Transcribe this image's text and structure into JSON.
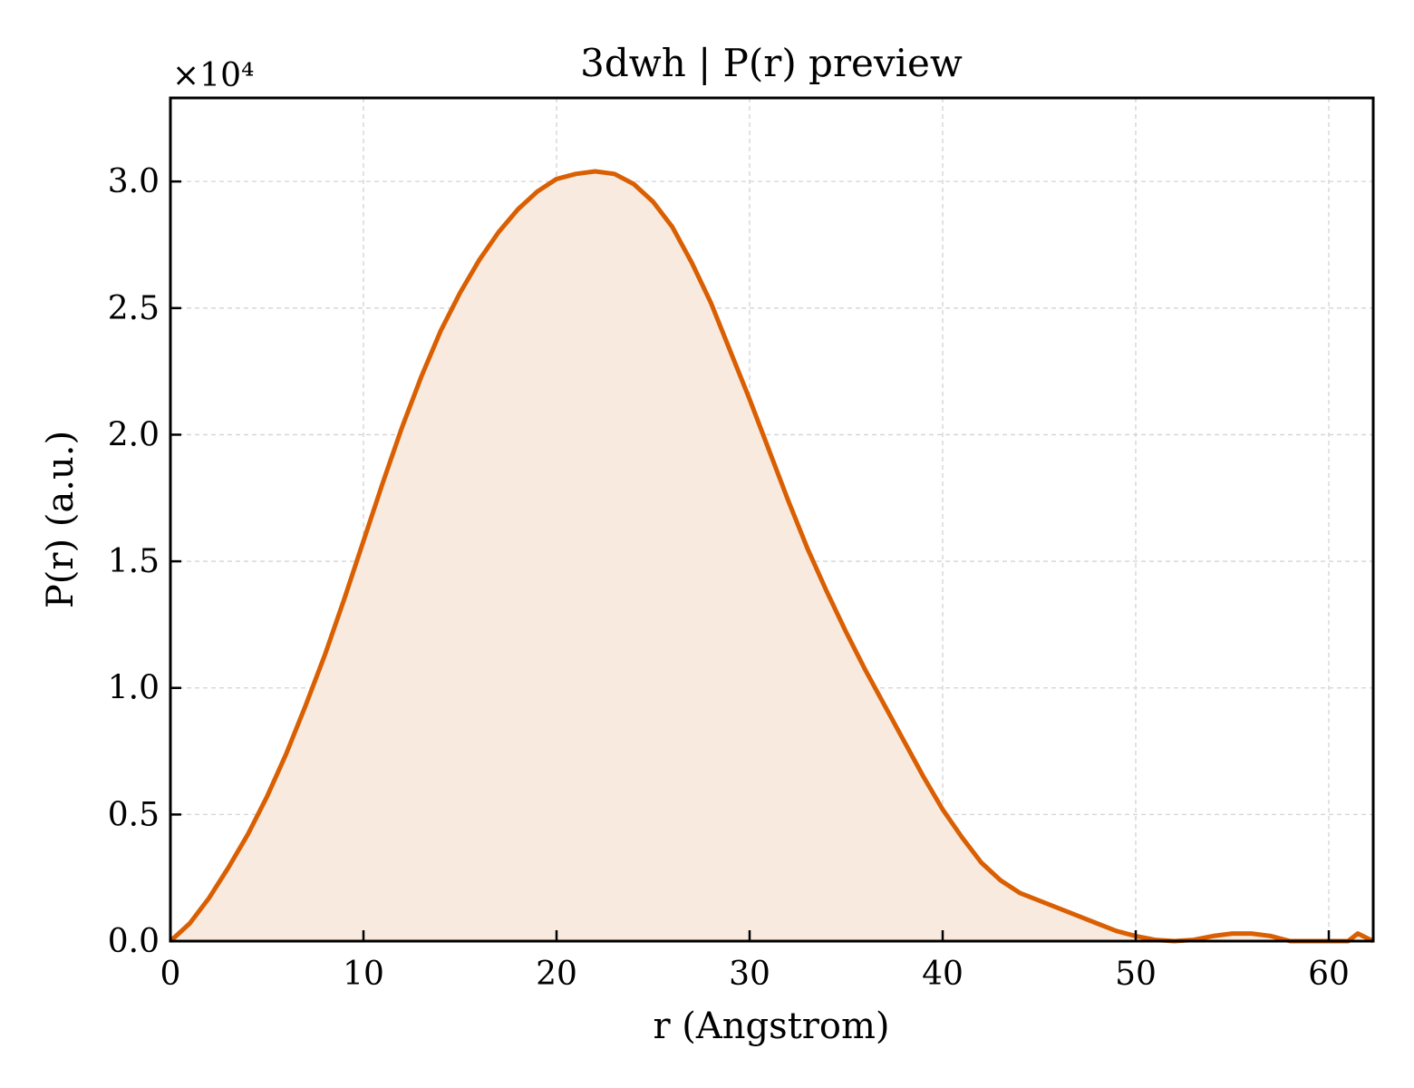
{
  "chart_data": {
    "type": "area",
    "title": "3dwh | P(r) preview",
    "xlabel": "r (Angstrom)",
    "ylabel": "P(r) (a.u.)",
    "y_multiplier_label": "×10⁴",
    "xlim": [
      0,
      62.3
    ],
    "ylim": [
      0,
      3.33
    ],
    "xticks": [
      0,
      10,
      20,
      30,
      40,
      50,
      60
    ],
    "xtick_labels": [
      "0",
      "10",
      "20",
      "30",
      "40",
      "50",
      "60"
    ],
    "yticks": [
      0,
      0.5,
      1.0,
      1.5,
      2.0,
      2.5,
      3.0
    ],
    "ytick_labels": [
      "0.0",
      "0.5",
      "1.0",
      "1.5",
      "2.0",
      "2.5",
      "3.0"
    ],
    "grid": true,
    "line_color": "#d95f02",
    "fill_color": "#f9eadf",
    "series": [
      {
        "x": [
          0,
          1,
          2,
          3,
          4,
          5,
          6,
          7,
          8,
          9,
          10,
          11,
          12,
          13,
          14,
          15,
          16,
          17,
          18,
          19,
          20,
          21,
          22,
          23,
          24,
          25,
          26,
          27,
          28,
          29,
          30,
          31,
          32,
          33,
          34,
          35,
          36,
          37,
          38,
          39,
          40,
          41,
          42,
          43,
          44,
          45,
          46,
          47,
          48,
          49,
          50,
          51,
          52,
          53,
          54,
          55,
          56,
          57,
          58,
          59,
          60,
          61,
          61.5,
          62.3
        ],
        "y": [
          0,
          0.07,
          0.17,
          0.29,
          0.42,
          0.57,
          0.74,
          0.93,
          1.13,
          1.35,
          1.58,
          1.81,
          2.03,
          2.23,
          2.41,
          2.56,
          2.69,
          2.8,
          2.89,
          2.96,
          3.01,
          3.03,
          3.04,
          3.03,
          2.99,
          2.92,
          2.82,
          2.68,
          2.52,
          2.33,
          2.14,
          1.94,
          1.74,
          1.55,
          1.38,
          1.22,
          1.07,
          0.93,
          0.79,
          0.65,
          0.52,
          0.41,
          0.31,
          0.24,
          0.19,
          0.16,
          0.13,
          0.1,
          0.07,
          0.04,
          0.02,
          0.005,
          0.0,
          0.005,
          0.02,
          0.03,
          0.03,
          0.02,
          0.0,
          0.0,
          0.0,
          0.0,
          0.03,
          0.0
        ]
      }
    ]
  }
}
